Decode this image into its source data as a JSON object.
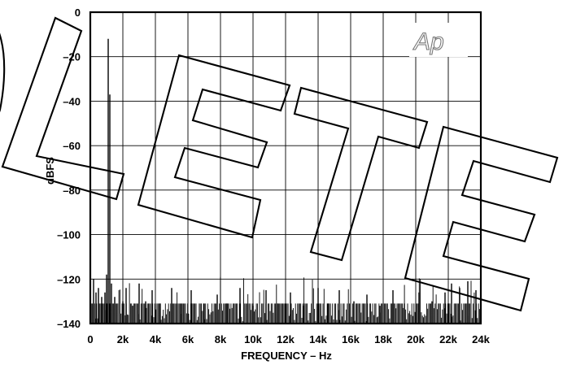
{
  "chart_data": {
    "type": "line",
    "xlabel": "FREQUENCY – Hz",
    "ylabel": "dBFS",
    "xlim": [
      0,
      24000
    ],
    "ylim": [
      -140,
      0
    ],
    "x_ticks": [
      0,
      2000,
      4000,
      6000,
      8000,
      10000,
      12000,
      14000,
      16000,
      18000,
      20000,
      22000,
      24000
    ],
    "x_tick_labels": [
      "0",
      "2k",
      "4k",
      "6k",
      "8k",
      "10k",
      "12k",
      "14k",
      "16k",
      "18k",
      "20k",
      "22k",
      "24k"
    ],
    "y_ticks": [
      0,
      -20,
      -40,
      -60,
      -80,
      -100,
      -120,
      -140
    ],
    "y_tick_labels": [
      "0",
      "–20",
      "–40",
      "–60",
      "–80",
      "–100",
      "–120",
      "–140"
    ],
    "grid": true,
    "noise_floor_db": -133,
    "series": [
      {
        "color": "#000000",
        "x": [
          0,
          200,
          350,
          500,
          700,
          900,
          1000,
          1100,
          1200,
          1300,
          1500,
          2000,
          2200,
          2600,
          3000,
          3400,
          3800,
          4300,
          5000,
          5600,
          6200,
          7000,
          7800,
          8400,
          9200,
          10000,
          10800,
          11500,
          12300,
          13100,
          14000,
          14600,
          15300,
          16200,
          17000,
          17800,
          18600,
          19300,
          20200,
          21000,
          21800,
          22200,
          22700,
          23200,
          23700,
          24000
        ],
        "y": [
          -42,
          -120,
          -126,
          -124,
          -128,
          -126,
          -118,
          -12,
          -37,
          -122,
          -128,
          -130,
          -124,
          -132,
          -122,
          -130,
          -125,
          -131,
          -124,
          -131,
          -125,
          -131,
          -127,
          -131,
          -124,
          -132,
          -125,
          -131,
          -126,
          -132,
          -124,
          -131,
          -125,
          -130,
          -127,
          -132,
          -125,
          -131,
          -126,
          -130,
          -126,
          -122,
          -124,
          -121,
          -125,
          -127
        ]
      }
    ]
  },
  "watermark": {
    "text": "DELETE",
    "color": "#000000"
  },
  "logo": {
    "text": "Ap"
  }
}
